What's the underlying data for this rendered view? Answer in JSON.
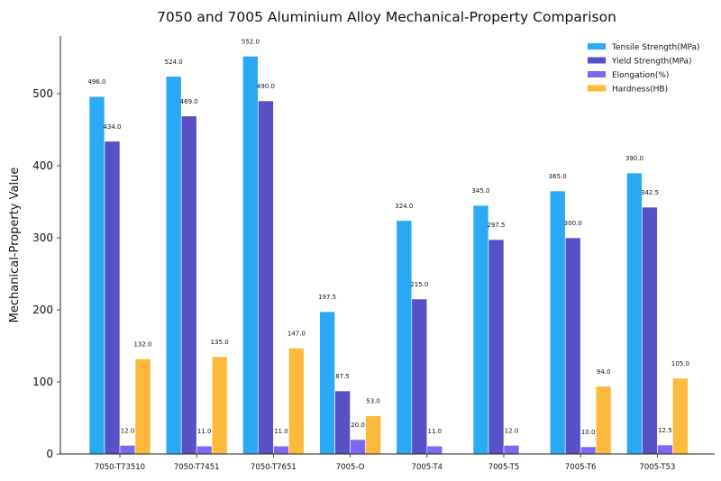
{
  "chart_data": {
    "type": "bar",
    "title": "7050 and 7005 Aluminium Alloy Mechanical-Property Comparison",
    "xlabel": "",
    "ylabel": "Mechanical-Property Value",
    "categories": [
      "7050-T73510",
      "7050-T7451",
      "7050-T7651",
      "7005-O",
      "7005-T4",
      "7005-T5",
      "7005-T6",
      "7005-T53"
    ],
    "ylim": [
      0,
      580
    ],
    "yticks": [
      0,
      100,
      200,
      300,
      400,
      500
    ],
    "grid": false,
    "legend_position": "top-right",
    "series": [
      {
        "name": "Tensile Strength(MPa)",
        "color": "#2aaaf5",
        "values": [
          496.0,
          524.0,
          552.0,
          197.5,
          324.0,
          345.0,
          365.0,
          390.0
        ]
      },
      {
        "name": "Yield Strength(MPa)",
        "color": "#5750c7",
        "values": [
          434.0,
          469.0,
          490.0,
          87.5,
          215.0,
          297.5,
          300.0,
          342.5
        ]
      },
      {
        "name": "Elongation(%)",
        "color": "#7c68ee",
        "values": [
          12.0,
          11.0,
          11.0,
          20.0,
          11.0,
          12.0,
          10.0,
          12.5
        ]
      },
      {
        "name": "Hardness(HB)",
        "color": "#fdb93c",
        "values": [
          132.0,
          135.0,
          147.0,
          53.0,
          null,
          null,
          94.0,
          105.0
        ]
      }
    ]
  }
}
